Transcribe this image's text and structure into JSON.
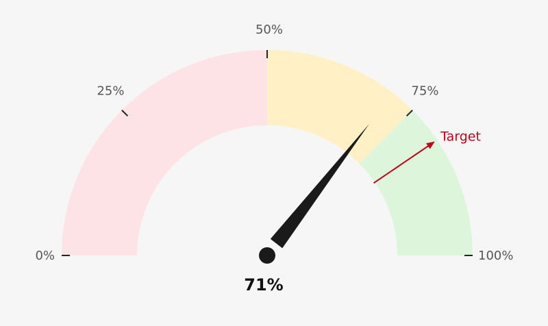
{
  "chart_data": {
    "type": "gauge",
    "value": 71,
    "value_label": "71%",
    "min": 0,
    "max": 100,
    "bands": [
      {
        "from": 0,
        "to": 50,
        "color": "#fde3e5"
      },
      {
        "from": 50,
        "to": 75,
        "color": "#fff0c6"
      },
      {
        "from": 75,
        "to": 100,
        "color": "#ddf5da"
      }
    ],
    "ticks": [
      {
        "value": 0,
        "label": "0%"
      },
      {
        "value": 25,
        "label": "25%"
      },
      {
        "value": 50,
        "label": "50%"
      },
      {
        "value": 75,
        "label": "75%"
      },
      {
        "value": 100,
        "label": "100%"
      }
    ],
    "target": {
      "value": 81,
      "label": "Target",
      "color": "#c0001a"
    },
    "needle_color": "#1a1a1a"
  }
}
